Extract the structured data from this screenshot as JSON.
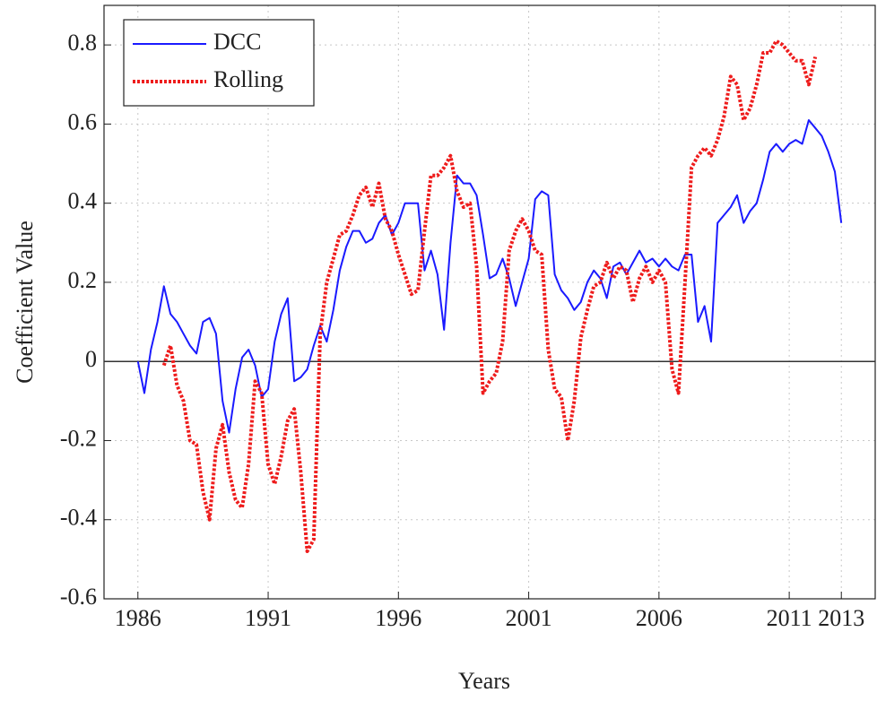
{
  "chart_data": {
    "type": "line",
    "x_label": "Years",
    "y_label": "Coefficient Value",
    "xlim": [
      1984.7,
      2014.3
    ],
    "ylim": [
      -0.6,
      0.9
    ],
    "xticks": [
      1986,
      1991,
      1996,
      2001,
      2006,
      2011,
      2013
    ],
    "yticks": [
      -0.6,
      -0.4,
      -0.2,
      0,
      0.2,
      0.4,
      0.6,
      0.8
    ],
    "grid": true,
    "legend": "upper left",
    "x": [
      1986,
      1986.25,
      1986.5,
      1986.75,
      1987,
      1987.25,
      1987.5,
      1987.75,
      1988,
      1988.25,
      1988.5,
      1988.75,
      1989,
      1989.25,
      1989.5,
      1989.75,
      1990,
      1990.25,
      1990.5,
      1990.75,
      1991,
      1991.25,
      1991.5,
      1991.75,
      1992,
      1992.25,
      1992.5,
      1992.75,
      1993,
      1993.25,
      1993.5,
      1993.75,
      1994,
      1994.25,
      1994.5,
      1994.75,
      1995,
      1995.25,
      1995.5,
      1995.75,
      1996,
      1996.25,
      1996.5,
      1996.75,
      1997,
      1997.25,
      1997.5,
      1997.75,
      1998,
      1998.25,
      1998.5,
      1998.75,
      1999,
      1999.25,
      1999.5,
      1999.75,
      2000,
      2000.25,
      2000.5,
      2000.75,
      2001,
      2001.25,
      2001.5,
      2001.75,
      2002,
      2002.25,
      2002.5,
      2002.75,
      2003,
      2003.25,
      2003.5,
      2003.75,
      2004,
      2004.25,
      2004.5,
      2004.75,
      2005,
      2005.25,
      2005.5,
      2005.75,
      2006,
      2006.25,
      2006.5,
      2006.75,
      2007,
      2007.25,
      2007.5,
      2007.75,
      2008,
      2008.25,
      2008.5,
      2008.75,
      2009,
      2009.25,
      2009.5,
      2009.75,
      2010,
      2010.25,
      2010.5,
      2010.75,
      2011,
      2011.25,
      2011.5,
      2011.75,
      2012,
      2012.25,
      2012.5,
      2012.75,
      2013
    ],
    "series": [
      {
        "name": "DCC",
        "color": "#1a1aff",
        "style": "solid",
        "values": [
          0,
          -0.08,
          0.03,
          0.1,
          0.19,
          0.12,
          0.1,
          0.07,
          0.04,
          0.02,
          0.1,
          0.11,
          0.07,
          -0.1,
          -0.18,
          -0.07,
          0.01,
          0.03,
          -0.01,
          -0.09,
          -0.07,
          0.05,
          0.12,
          0.16,
          -0.05,
          -0.04,
          -0.02,
          0.04,
          0.09,
          0.05,
          0.13,
          0.23,
          0.29,
          0.33,
          0.33,
          0.3,
          0.31,
          0.35,
          0.37,
          0.32,
          0.35,
          0.4,
          0.4,
          0.4,
          0.23,
          0.28,
          0.22,
          0.08,
          0.3,
          0.47,
          0.45,
          0.45,
          0.42,
          0.32,
          0.21,
          0.22,
          0.26,
          0.21,
          0.14,
          0.2,
          0.26,
          0.41,
          0.43,
          0.42,
          0.22,
          0.18,
          0.16,
          0.13,
          0.15,
          0.2,
          0.23,
          0.21,
          0.16,
          0.24,
          0.25,
          0.22,
          0.25,
          0.28,
          0.25,
          0.26,
          0.24,
          0.26,
          0.24,
          0.23,
          0.27,
          0.27,
          0.1,
          0.14,
          0.05,
          0.35,
          0.37,
          0.39,
          0.42,
          0.35,
          0.38,
          0.4,
          0.46,
          0.53,
          0.55,
          0.53,
          0.55,
          0.56,
          0.55,
          0.61,
          0.59,
          0.57,
          0.53,
          0.48,
          0.35
        ]
      },
      {
        "name": "Rolling",
        "color": "#ee1c1c",
        "style": "dotted",
        "values": [
          null,
          null,
          null,
          null,
          -0.01,
          0.04,
          -0.06,
          -0.1,
          -0.2,
          -0.21,
          -0.33,
          -0.4,
          -0.22,
          -0.16,
          -0.28,
          -0.35,
          -0.37,
          -0.26,
          -0.05,
          -0.08,
          -0.26,
          -0.31,
          -0.24,
          -0.15,
          -0.12,
          -0.28,
          -0.48,
          -0.45,
          0.07,
          0.2,
          0.26,
          0.32,
          0.33,
          0.37,
          0.42,
          0.44,
          0.39,
          0.45,
          0.36,
          0.33,
          0.27,
          0.22,
          0.17,
          0.18,
          0.33,
          0.47,
          0.47,
          0.49,
          0.52,
          0.43,
          0.39,
          0.4,
          0.24,
          -0.08,
          -0.05,
          -0.03,
          0.05,
          0.28,
          0.33,
          0.36,
          0.33,
          0.28,
          0.27,
          0.03,
          -0.07,
          -0.09,
          -0.2,
          -0.1,
          0.06,
          0.13,
          0.19,
          0.2,
          0.25,
          0.21,
          0.24,
          0.23,
          0.15,
          0.21,
          0.24,
          0.2,
          0.23,
          0.2,
          -0.02,
          -0.08,
          0.2,
          0.49,
          0.52,
          0.54,
          0.52,
          0.56,
          0.62,
          0.72,
          0.7,
          0.61,
          0.64,
          0.7,
          0.78,
          0.78,
          0.81,
          0.8,
          0.78,
          0.76,
          0.76,
          0.7,
          0.77,
          null,
          null,
          null,
          null
        ]
      }
    ]
  }
}
